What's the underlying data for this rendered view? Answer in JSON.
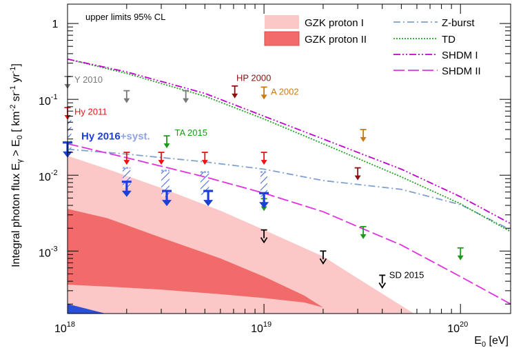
{
  "chart_data": {
    "type": "scatter",
    "xscale": "log",
    "yscale": "log",
    "xlim": [
      1e+18,
      1.8e+20
    ],
    "ylim": [
      0.00015,
      1.8
    ],
    "xlabel": "E₀ [eV]",
    "ylabel": "Integral photon flux Eγ > E₀ [ km⁻² sr⁻¹ yr⁻¹ ]",
    "ylabel_parts": {
      "main": "Integral photon flux E",
      "gamma": "γ",
      "gt": " > E",
      "zero": "0",
      "units": " [ km",
      "km_exp": "-2",
      "sr": " sr",
      "sr_exp": "-1",
      "yr": " yr",
      "yr_exp": "-1",
      "close": "]"
    },
    "xlabel_parts": {
      "main": "E",
      "sub": "0",
      "unit": " [eV]"
    },
    "x_ticks": [
      {
        "value": 1e+18,
        "base": "10",
        "exp": "18"
      },
      {
        "value": 1e+19,
        "base": "10",
        "exp": "19"
      },
      {
        "value": 1e+20,
        "base": "10",
        "exp": "20"
      }
    ],
    "y_ticks": [
      {
        "value": 1,
        "label": "1",
        "base": "",
        "exp": ""
      },
      {
        "value": 0.1,
        "label": "",
        "base": "10",
        "exp": "-1"
      },
      {
        "value": 0.01,
        "label": "",
        "base": "10",
        "exp": "-2"
      },
      {
        "value": 0.001,
        "label": "",
        "base": "10",
        "exp": "-3"
      }
    ],
    "annotation_top_left": "upper limits 95% CL",
    "bands": [
      {
        "name": "GZK proton I",
        "color": "#fbc7c7",
        "x": [
          1e+18,
          1.6e+18,
          3e+18,
          6e+18,
          1e+19,
          2e+19,
          3.5e+19,
          5.8e+19
        ],
        "upper": [
          0.018,
          0.012,
          0.0068,
          0.0034,
          0.0019,
          0.00085,
          0.00034,
          0.00015
        ],
        "lower": [
          0.00015,
          0.00015,
          0.00015,
          0.00015,
          0.00015,
          0.00015,
          0.00015,
          0.00015
        ]
      },
      {
        "name": "GZK proton II",
        "color": "#f26b6b",
        "x": [
          1e+18,
          1.6e+18,
          3e+18,
          6e+18,
          1e+19,
          1.6e+19,
          2e+19,
          2.5e+19
        ],
        "upper": [
          0.0036,
          0.0027,
          0.0015,
          0.0008,
          0.00046,
          0.00026,
          0.00018,
          0.00015
        ],
        "lower": [
          0.00036,
          0.00034,
          0.00031,
          0.00027,
          0.00024,
          0.00021,
          0.00018,
          0.00015
        ]
      }
    ],
    "lines": [
      {
        "name": "Z-burst",
        "color": "#7f9fd0",
        "dash": "10,4,2,4",
        "x": [
          1e+18,
          2e+18,
          5e+18,
          1e+19,
          2e+19,
          5e+19,
          1e+20,
          1.8e+20
        ],
        "y": [
          0.022,
          0.019,
          0.015,
          0.012,
          0.0085,
          0.0065,
          0.0041,
          0.0019
        ]
      },
      {
        "name": "TD",
        "color": "#20a020",
        "dash": "2,2",
        "x": [
          1e+18,
          2e+18,
          5e+18,
          1e+19,
          2e+19,
          5e+19,
          1e+20,
          1.8e+20
        ],
        "y": [
          0.34,
          0.22,
          0.11,
          0.055,
          0.026,
          0.0095,
          0.0042,
          0.0018
        ]
      },
      {
        "name": "SHDM I",
        "color": "#c000d0",
        "dash": "10,3,2,3,2,3",
        "x": [
          1e+18,
          2e+18,
          5e+18,
          1e+19,
          2e+19,
          5e+19,
          1e+20,
          1.8e+20
        ],
        "y": [
          0.34,
          0.23,
          0.12,
          0.06,
          0.03,
          0.012,
          0.0052,
          0.0023
        ]
      },
      {
        "name": "SHDM II",
        "color": "#e030e0",
        "dash": "16,5",
        "x": [
          1e+18,
          2e+18,
          5e+18,
          1e+19,
          2e+19,
          3e+19,
          5e+19,
          1e+20,
          1.8e+20
        ],
        "y": [
          0.026,
          0.017,
          0.0095,
          0.0058,
          0.0033,
          0.0021,
          0.0012,
          0.00046,
          0.0002
        ]
      }
    ],
    "limits": [
      {
        "name": "Y 2010",
        "color": "#777777",
        "points": [
          [
            1e+18,
            0.2
          ],
          [
            2e+18,
            0.13
          ],
          [
            4e+18,
            0.13
          ]
        ],
        "label_at": [
          1.05e+18,
          0.18
        ]
      },
      {
        "name": "Hy 2011",
        "color": "#ee1111",
        "points": [
          [
            1e+18,
            0.078
          ],
          [
            2e+18,
            0.02
          ],
          [
            3e+18,
            0.02
          ],
          [
            5e+18,
            0.02
          ],
          [
            1e+19,
            0.02
          ]
        ],
        "label_at": [
          1.05e+18,
          0.068
        ]
      },
      {
        "name": "HP 2000",
        "color": "#8b1010",
        "points": [
          [
            7.1e+18,
            0.15
          ],
          [
            3e+19,
            0.0125
          ]
        ],
        "label_at": [
          7e+18,
          0.19
        ]
      },
      {
        "name": "A 2002",
        "color": "#cc7a10",
        "points": [
          [
            1e+19,
            0.145
          ],
          [
            3.2e+19,
            0.04
          ]
        ],
        "label_at": [
          1.05e+19,
          0.125
        ]
      },
      {
        "name": "TA 2015",
        "color": "#1a9a1a",
        "points": [
          [
            3.2e+18,
            0.033
          ],
          [
            1e+19,
            0.0049
          ],
          [
            3.2e+19,
            0.0021
          ],
          [
            1e+20,
            0.0011
          ]
        ],
        "label_at": [
          3.4e+18,
          0.036
        ]
      },
      {
        "name": "SD 2015",
        "color": "#000000",
        "points": [
          [
            1e+19,
            0.0019
          ],
          [
            2e+19,
            0.001
          ],
          [
            4e+19,
            0.00048
          ]
        ],
        "label_at": [
          4.2e+19,
          0.00048
        ],
        "open": true
      },
      {
        "name": "Hy 2016",
        "color": "#1c3fd8",
        "points": [
          [
            1e+18,
            0.027
          ],
          [
            2e+18,
            0.0082
          ],
          [
            3.2e+18,
            0.0062
          ],
          [
            5.2e+18,
            0.0062
          ],
          [
            1e+19,
            0.0058
          ]
        ],
        "label_at": [
          1.05e+18,
          0.032
        ],
        "thick": true
      }
    ],
    "hy2016_label": {
      "main": "Hy 2016",
      "suffix": "+syst."
    },
    "syst_boxes": [
      {
        "x": [
          9.55e+17,
          1.045e+18
        ],
        "y": [
          0.022,
          0.06
        ]
      },
      {
        "x": [
          1.91e+18,
          2.09e+18
        ],
        "y": [
          0.0068,
          0.0125
        ]
      },
      {
        "x": [
          3e+18,
          3.3e+18
        ],
        "y": [
          0.0052,
          0.0115
        ]
      },
      {
        "x": [
          4.75e+18,
          5.25e+18
        ],
        "y": [
          0.0055,
          0.011
        ]
      },
      {
        "x": [
          9.6e+18,
          1.04e+19
        ],
        "y": [
          0.0052,
          0.011
        ]
      }
    ],
    "legend": [
      {
        "name": "GZK proton I",
        "kind": "band",
        "color": "#fbc7c7"
      },
      {
        "name": "GZK proton II",
        "kind": "band",
        "color": "#f26b6b"
      },
      {
        "name": "Z-burst",
        "kind": "line",
        "series": 0
      },
      {
        "name": "TD",
        "kind": "line",
        "series": 1
      },
      {
        "name": "SHDM I",
        "kind": "line",
        "series": 2
      },
      {
        "name": "SHDM II",
        "kind": "line",
        "series": 3
      }
    ]
  }
}
